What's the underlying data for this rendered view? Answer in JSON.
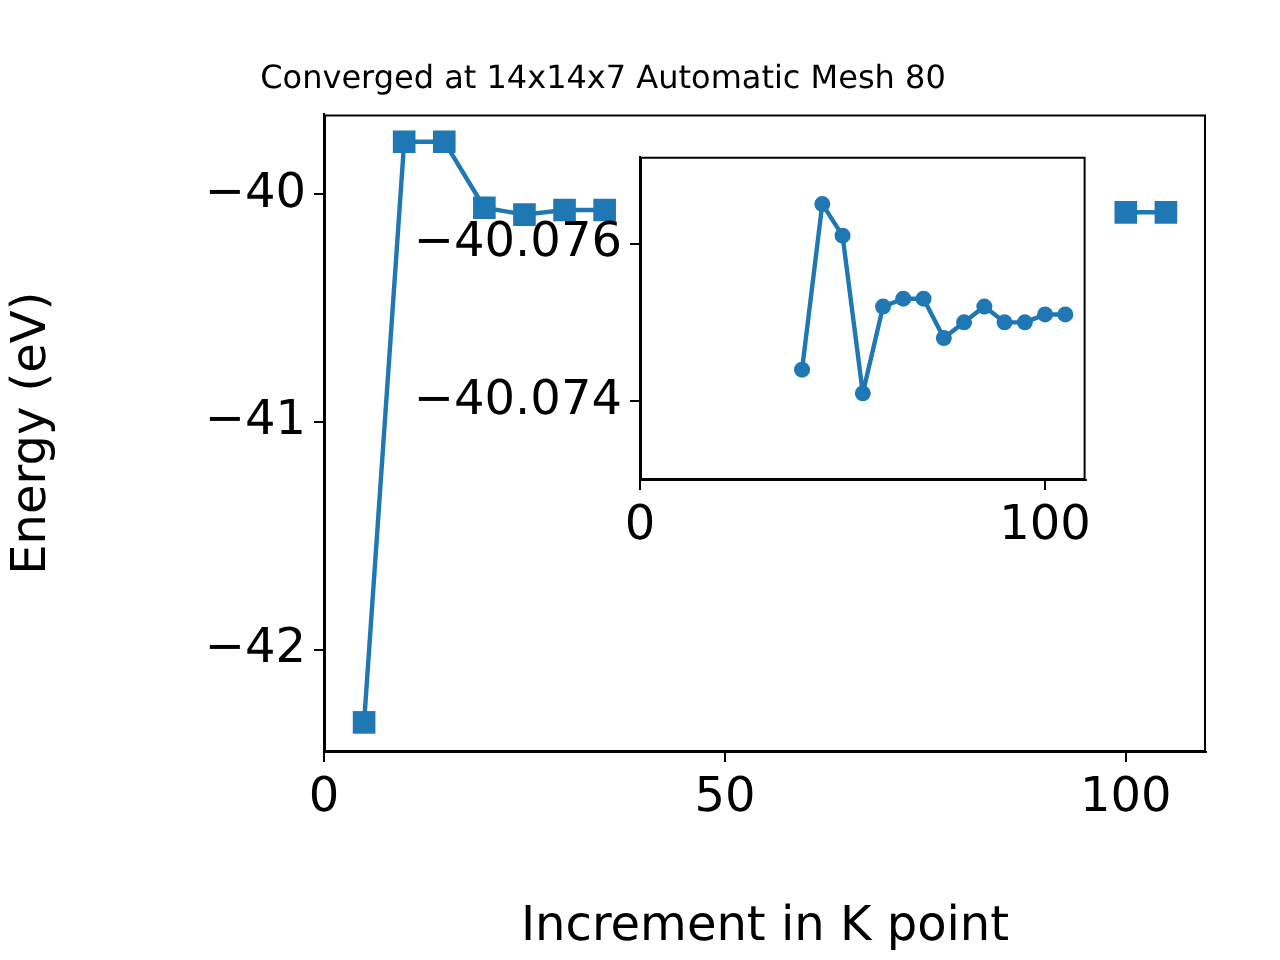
{
  "chart_data": [
    {
      "type": "line",
      "title": "Converged at 14x14x7 Automatic Mesh 80",
      "xlabel": "Increment in K point",
      "ylabel": "Energy (eV)",
      "marker": "square",
      "x": [
        5,
        10,
        15,
        20,
        25,
        30,
        35,
        40,
        45,
        50,
        55,
        60,
        65,
        70,
        75,
        80,
        85,
        90,
        95,
        100,
        105
      ],
      "series": [
        {
          "color": "#1f77b4",
          "values": [
            -42.32,
            -39.77,
            -39.77,
            -40.06,
            -40.09,
            -40.07,
            -40.07,
            null,
            null,
            null,
            null,
            null,
            null,
            null,
            null,
            null,
            null,
            null,
            null,
            -40.08,
            -40.08
          ]
        }
      ],
      "xlim": [
        0,
        110
      ],
      "ylim": [
        -42.45,
        -39.65
      ],
      "xticks": [
        0,
        50,
        100
      ],
      "yticks": [
        {
          "value": -42,
          "label": "−42"
        },
        {
          "value": -41,
          "label": "−41"
        },
        {
          "value": -40,
          "label": "−40"
        }
      ]
    },
    {
      "type": "line",
      "marker": "circle",
      "x": [
        40,
        45,
        50,
        55,
        60,
        65,
        70,
        75,
        80,
        85,
        90,
        95,
        100,
        105
      ],
      "series": [
        {
          "color": "#1f77b4",
          "values": [
            -40.0744,
            -40.0765,
            -40.0761,
            -40.0741,
            -40.0752,
            -40.0753,
            -40.0753,
            -40.0748,
            -40.075,
            -40.0752,
            -40.075,
            -40.075,
            -40.0751,
            -40.0751
          ]
        }
      ],
      "xlim": [
        0,
        110
      ],
      "ylim": [
        -40.073,
        -40.0771
      ],
      "xticks": [
        0,
        100
      ],
      "yticks": [
        {
          "value": -40.076,
          "label": "−40.076"
        },
        {
          "value": -40.074,
          "label": "−40.074"
        }
      ]
    }
  ]
}
